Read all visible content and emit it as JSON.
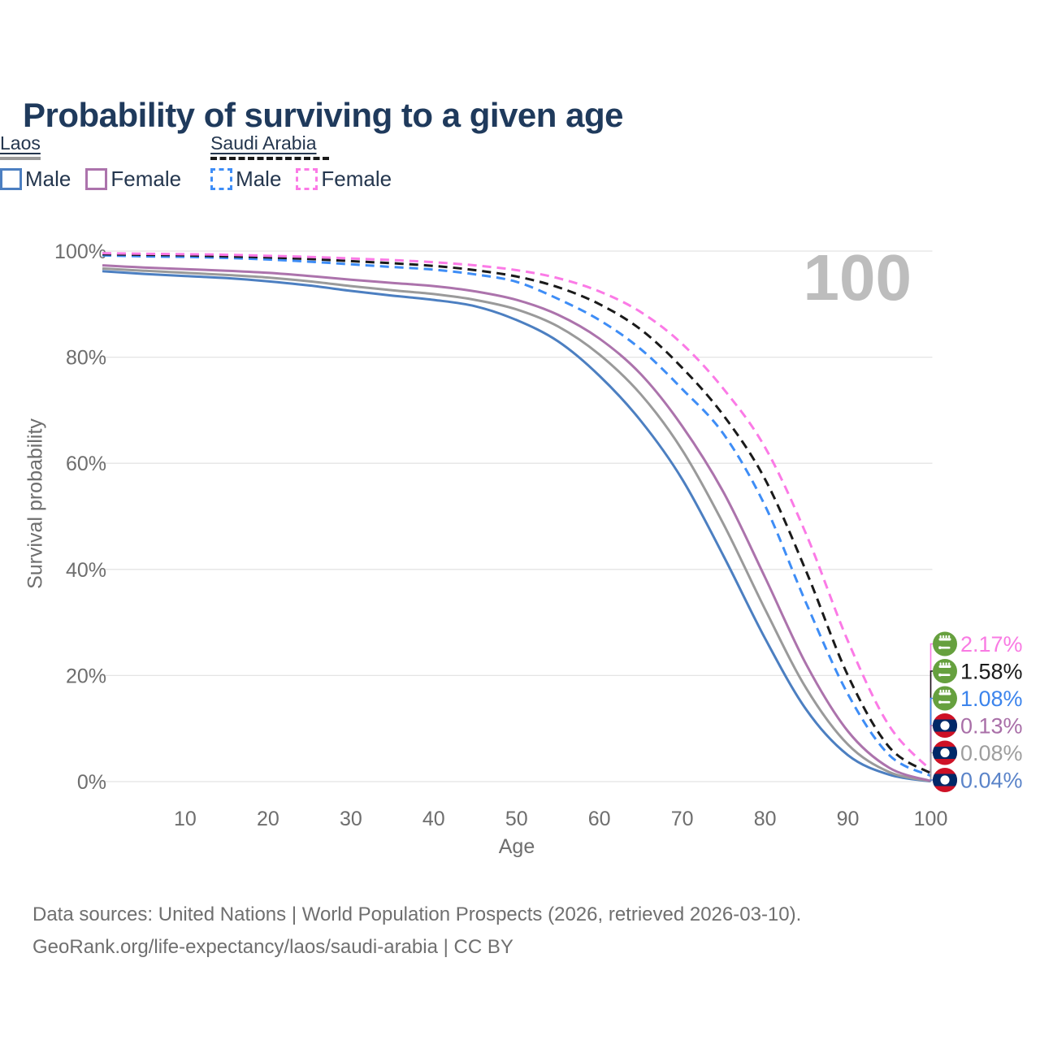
{
  "title": "Probability of surviving to a given age",
  "watermark_age": "100",
  "legend": {
    "groups": [
      {
        "country": "Laos",
        "all_series_color": "#9a9a9a",
        "all_series_style": "solid",
        "items": [
          {
            "label": "Male",
            "color": "#4c7fc1",
            "border_style": "solid"
          },
          {
            "label": "Female",
            "color": "#ac73ac",
            "border_style": "solid"
          }
        ]
      },
      {
        "country": "Saudi Arabia",
        "all_series_color": "#1a1a1a",
        "all_series_style": "dashed",
        "items": [
          {
            "label": "Male",
            "color": "#3e8df6",
            "border_style": "dashed"
          },
          {
            "label": "Female",
            "color": "#fb7ae6",
            "border_style": "dashed"
          }
        ]
      }
    ]
  },
  "chart_data": {
    "type": "line",
    "title": "Probability of surviving to a given age",
    "xlabel": "Age",
    "ylabel": "Survival probability",
    "xlim": [
      0,
      100
    ],
    "ylim": [
      0,
      100
    ],
    "grid": "horizontal",
    "legend_position": "top-right",
    "x_ticks": [
      10,
      20,
      30,
      40,
      50,
      60,
      70,
      80,
      90,
      100
    ],
    "y_ticks": [
      {
        "value": 0,
        "label": "0%"
      },
      {
        "value": 20,
        "label": "20%"
      },
      {
        "value": 40,
        "label": "40%"
      },
      {
        "value": 60,
        "label": "60%"
      },
      {
        "value": 80,
        "label": "80%"
      },
      {
        "value": 100,
        "label": "100%"
      }
    ],
    "x": [
      0,
      5,
      10,
      15,
      20,
      25,
      30,
      35,
      40,
      45,
      50,
      55,
      60,
      65,
      70,
      75,
      80,
      85,
      90,
      95,
      100
    ],
    "series": [
      {
        "slug": "laos-male",
        "name": "Laos Male",
        "country": "Laos",
        "sex": "Male",
        "color": "#4c7fc1",
        "dash": false,
        "flag": "laos",
        "label_rank": 5,
        "values": [
          96.2,
          95.7,
          95.3,
          94.9,
          94.3,
          93.5,
          92.5,
          91.6,
          90.8,
          89.6,
          87.0,
          83.0,
          76.5,
          68.0,
          57.0,
          42.5,
          27.0,
          13.5,
          5.0,
          1.3,
          0.04
        ],
        "end_label": {
          "text": "0.04%",
          "color": "#5b84c9"
        }
      },
      {
        "slug": "laos-all",
        "name": "Laos Both sexes",
        "country": "Laos",
        "sex": "All",
        "color": "#9a9a9a",
        "dash": false,
        "flag": "laos",
        "label_rank": 4,
        "values": [
          96.7,
          96.3,
          95.9,
          95.5,
          95.0,
          94.3,
          93.4,
          92.6,
          91.9,
          90.8,
          89.0,
          85.8,
          80.5,
          73.0,
          62.5,
          48.5,
          32.5,
          17.5,
          7.0,
          1.8,
          0.08
        ],
        "end_label": {
          "text": "0.08%",
          "color": "#9e9e9e"
        }
      },
      {
        "slug": "laos-female",
        "name": "Laos Female",
        "country": "Laos",
        "sex": "Female",
        "color": "#ac73ac",
        "dash": false,
        "flag": "laos",
        "label_rank": 3,
        "values": [
          97.3,
          96.9,
          96.6,
          96.3,
          95.9,
          95.3,
          94.6,
          94.0,
          93.4,
          92.4,
          90.8,
          88.0,
          83.5,
          76.8,
          67.0,
          54.5,
          38.5,
          22.0,
          9.5,
          2.6,
          0.13
        ],
        "end_label": {
          "text": "0.13%",
          "color": "#a96fa8"
        }
      },
      {
        "slug": "saudi-male",
        "name": "Saudi Arabia Male",
        "country": "Saudi Arabia",
        "sex": "Male",
        "color": "#3e8df6",
        "dash": true,
        "flag": "saudi-arabia",
        "label_rank": 2,
        "values": [
          99.2,
          99.0,
          98.9,
          98.7,
          98.4,
          98.0,
          97.5,
          97.0,
          96.5,
          95.6,
          94.2,
          91.0,
          87.0,
          81.5,
          74.0,
          65.5,
          52.0,
          33.5,
          16.5,
          5.0,
          1.08
        ],
        "end_label": {
          "text": "1.08%",
          "color": "#3c84ec"
        }
      },
      {
        "slug": "saudi-all",
        "name": "Saudi Arabia Both sexes",
        "country": "Saudi Arabia",
        "sex": "All",
        "color": "#1a1a1a",
        "dash": true,
        "flag": "saudi-arabia",
        "label_rank": 1,
        "values": [
          99.4,
          99.3,
          99.2,
          99.0,
          98.8,
          98.5,
          98.1,
          97.7,
          97.2,
          96.4,
          95.2,
          93.2,
          90.0,
          85.2,
          78.0,
          69.0,
          57.0,
          39.5,
          20.0,
          6.5,
          1.58
        ],
        "end_label": {
          "text": "1.58%",
          "color": "#1a1a1a"
        }
      },
      {
        "slug": "saudi-female",
        "name": "Saudi Arabia Female",
        "country": "Saudi Arabia",
        "sex": "Female",
        "color": "#fb7ae6",
        "dash": true,
        "flag": "saudi-arabia",
        "label_rank": 0,
        "values": [
          99.6,
          99.5,
          99.4,
          99.3,
          99.1,
          98.9,
          98.6,
          98.3,
          97.9,
          97.3,
          96.4,
          94.9,
          92.4,
          88.5,
          82.5,
          74.0,
          63.0,
          46.5,
          26.5,
          10.5,
          2.17
        ],
        "end_label": {
          "text": "2.17%",
          "color": "#f97be3"
        }
      }
    ]
  },
  "footer": {
    "line1": "Data sources: United Nations | World Population Prospects (2026, retrieved 2026-03-10).",
    "line2": "GeoRank.org/life-expectancy/laos/saudi-arabia | CC BY"
  }
}
